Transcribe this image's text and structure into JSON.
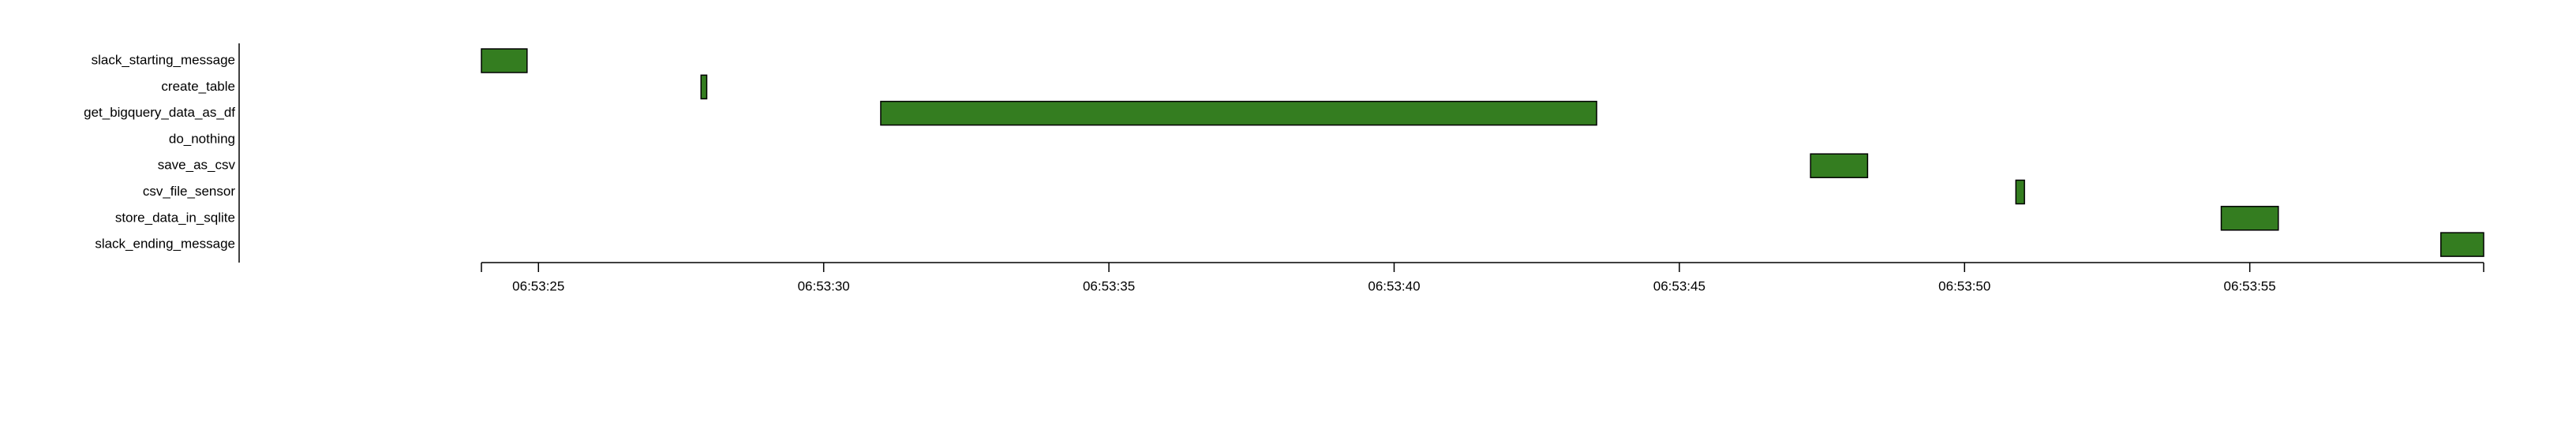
{
  "colors": {
    "bar_fill": "#347d20",
    "bar_stroke": "#000000",
    "axis": "#000000"
  },
  "chart_data": {
    "type": "gantt",
    "tasks": [
      {
        "name": "slack_starting_message",
        "start": "06:53:24.0",
        "end": "06:53:24.8"
      },
      {
        "name": "create_table",
        "start": "06:53:27.85",
        "end": "06:53:27.95"
      },
      {
        "name": "get_bigquery_data_as_df",
        "start": "06:53:31.0",
        "end": "06:53:43.55"
      },
      {
        "name": "do_nothing",
        "start": "06:53:43.55",
        "end": "06:53:43.55"
      },
      {
        "name": "save_as_csv",
        "start": "06:53:47.3",
        "end": "06:53:48.3"
      },
      {
        "name": "csv_file_sensor",
        "start": "06:53:50.9",
        "end": "06:53:51.05"
      },
      {
        "name": "store_data_in_sqlite",
        "start": "06:53:54.5",
        "end": "06:53:55.5"
      },
      {
        "name": "slack_ending_message",
        "start": "06:53:58.35",
        "end": "06:53:59.1"
      }
    ],
    "x_axis": {
      "domain": [
        "06:53:24.0",
        "06:53:59.1"
      ],
      "ticks": [
        "06:53:25",
        "06:53:30",
        "06:53:35",
        "06:53:40",
        "06:53:45",
        "06:53:50",
        "06:53:55"
      ]
    }
  }
}
